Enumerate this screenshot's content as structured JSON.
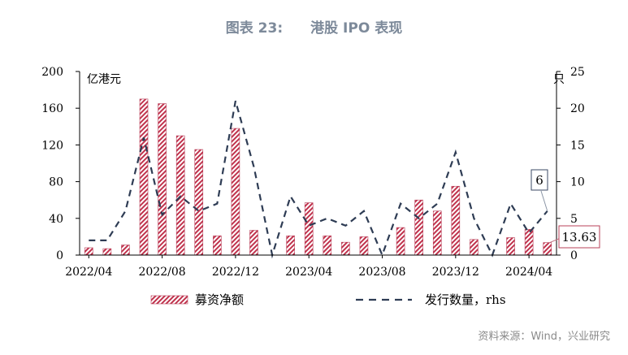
{
  "figure": {
    "label": "图表 23:",
    "title": "港股 IPO 表现",
    "source": "资料来源：Wind，兴业研究"
  },
  "colors": {
    "bar_stripe": "#c0334d",
    "bar_outline": "#b8405a",
    "line": "#2e3c54",
    "axis": "#000000",
    "title": "#7d8a9a",
    "source": "#8a8a8a"
  },
  "chart_data": {
    "type": "bar",
    "categories": [
      "2022/04",
      "2022/05",
      "2022/06",
      "2022/07",
      "2022/08",
      "2022/09",
      "2022/10",
      "2022/11",
      "2022/12",
      "2023/01",
      "2023/02",
      "2023/03",
      "2023/04",
      "2023/05",
      "2023/06",
      "2023/07",
      "2023/08",
      "2023/09",
      "2023/10",
      "2023/11",
      "2023/12",
      "2024/01",
      "2024/02",
      "2024/03",
      "2024/04",
      "2024/05"
    ],
    "x_tick_labels": [
      "2022/04",
      "2022/08",
      "2022/12",
      "2023/04",
      "2023/08",
      "2023/12",
      "2024/04"
    ],
    "series": [
      {
        "name": "募资净额",
        "type": "bar",
        "axis": "left",
        "values": [
          8,
          7,
          11,
          170,
          165,
          130,
          115,
          21,
          138,
          27,
          0,
          21,
          57,
          21,
          14,
          20,
          0,
          30,
          60,
          48,
          75,
          17,
          0,
          19,
          28,
          13.63
        ]
      },
      {
        "name": "发行数量，rhs",
        "type": "line",
        "style": "dashed",
        "axis": "right",
        "values": [
          2,
          2,
          6,
          16,
          5.5,
          8,
          6,
          7,
          21,
          12,
          0,
          8,
          4,
          5,
          4,
          6,
          0,
          7,
          5,
          7,
          14,
          5,
          0,
          7,
          3,
          6
        ]
      }
    ],
    "left_axis": {
      "unit_label": "亿港元",
      "ylim": [
        0,
        200
      ],
      "ticks": [
        0,
        40,
        80,
        120,
        160,
        200
      ]
    },
    "right_axis": {
      "unit_label": "只",
      "ylim": [
        0,
        25
      ],
      "ticks": [
        0,
        5,
        10,
        15,
        20,
        25
      ]
    },
    "annotations": [
      {
        "text": "6",
        "series": "发行数量，rhs",
        "category": "2024/05",
        "value": 6
      },
      {
        "text": "13.63",
        "series": "募资净额",
        "category": "2024/05",
        "value": 13.63
      }
    ],
    "legend": {
      "placement": "bottom"
    },
    "grid": false
  }
}
